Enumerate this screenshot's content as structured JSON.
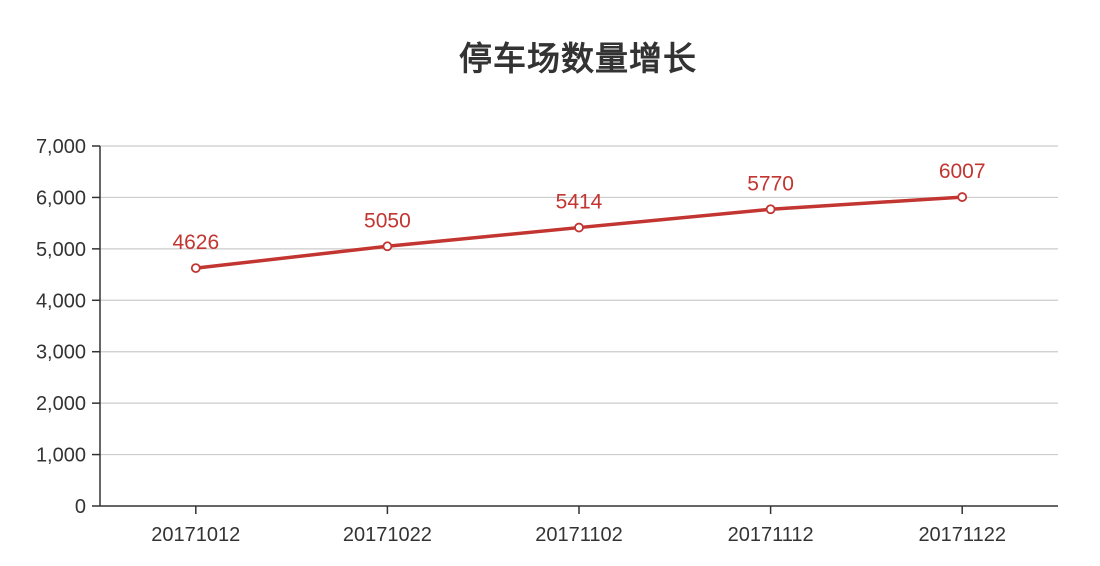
{
  "chart_data": {
    "type": "line",
    "title": "停车场数量增长",
    "xlabel": "",
    "ylabel": "",
    "categories": [
      "20171012",
      "20171022",
      "20171102",
      "20171112",
      "20171122"
    ],
    "series": [
      {
        "values": [
          4626,
          5050,
          5414,
          5770,
          6007
        ]
      }
    ],
    "ylim": [
      0,
      7000
    ],
    "yticks": [
      0,
      1000,
      2000,
      3000,
      4000,
      5000,
      6000,
      7000
    ],
    "ytick_labels": [
      "0",
      "1,000",
      "2,000",
      "3,000",
      "4,000",
      "5,000",
      "6,000",
      "7,000"
    ],
    "grid": true,
    "data_labels": true,
    "colors": {
      "series": "#c23531",
      "grid": "#cccccc",
      "axis": "#333333",
      "text": "#333333"
    }
  }
}
